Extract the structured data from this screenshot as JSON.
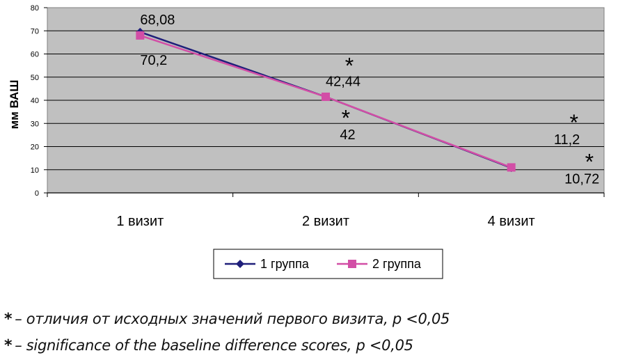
{
  "chart_data": {
    "type": "line",
    "ylabel": "мм ВАШ",
    "xlabel": "",
    "ylim": [
      0,
      80
    ],
    "yticks": [
      0,
      10,
      20,
      30,
      40,
      50,
      60,
      70,
      80
    ],
    "categories": [
      "1 визит",
      "2 визит",
      "4 визит"
    ],
    "grid": true,
    "legend_position": "bottom-center",
    "series": [
      {
        "name": "1 группа",
        "values": [
          69.5,
          41.5,
          10.8
        ],
        "color": "#1f1f7a",
        "marker": "diamond"
      },
      {
        "name": "2 группа",
        "values": [
          68.0,
          41.5,
          11.0
        ],
        "color": "#d24ea6",
        "marker": "square"
      }
    ],
    "annotations": [
      {
        "text": "68,08",
        "category": 0,
        "y": 75.2
      },
      {
        "text": "70,2",
        "category": 0,
        "y": 57.7
      },
      {
        "text": "42,44",
        "category": 1,
        "y": 48.5
      },
      {
        "text": "*",
        "category": 1,
        "y": 54.0,
        "offset": 1
      },
      {
        "text": "42",
        "category": 1,
        "y": 25.5,
        "offset": 0.6
      },
      {
        "text": "*",
        "category": 1,
        "y": 31.5,
        "offset": 0.85
      },
      {
        "text": "11,2",
        "category": 2,
        "y": 23.5,
        "offset": 1.8
      },
      {
        "text": "*",
        "category": 2,
        "y": 29.5,
        "offset": 2.65
      },
      {
        "text": "10,72",
        "category": 2,
        "y": 6.5,
        "offset": 2.25
      },
      {
        "text": "*",
        "category": 2,
        "y": 12.5,
        "offset": 3.3
      }
    ]
  },
  "footnotes": [
    {
      "star": "*",
      "text": "– отличия от исходных значений первого визита, p <0,05"
    },
    {
      "star": "*",
      "text": "– significance of the baseline difference scores, p <0,05"
    }
  ]
}
